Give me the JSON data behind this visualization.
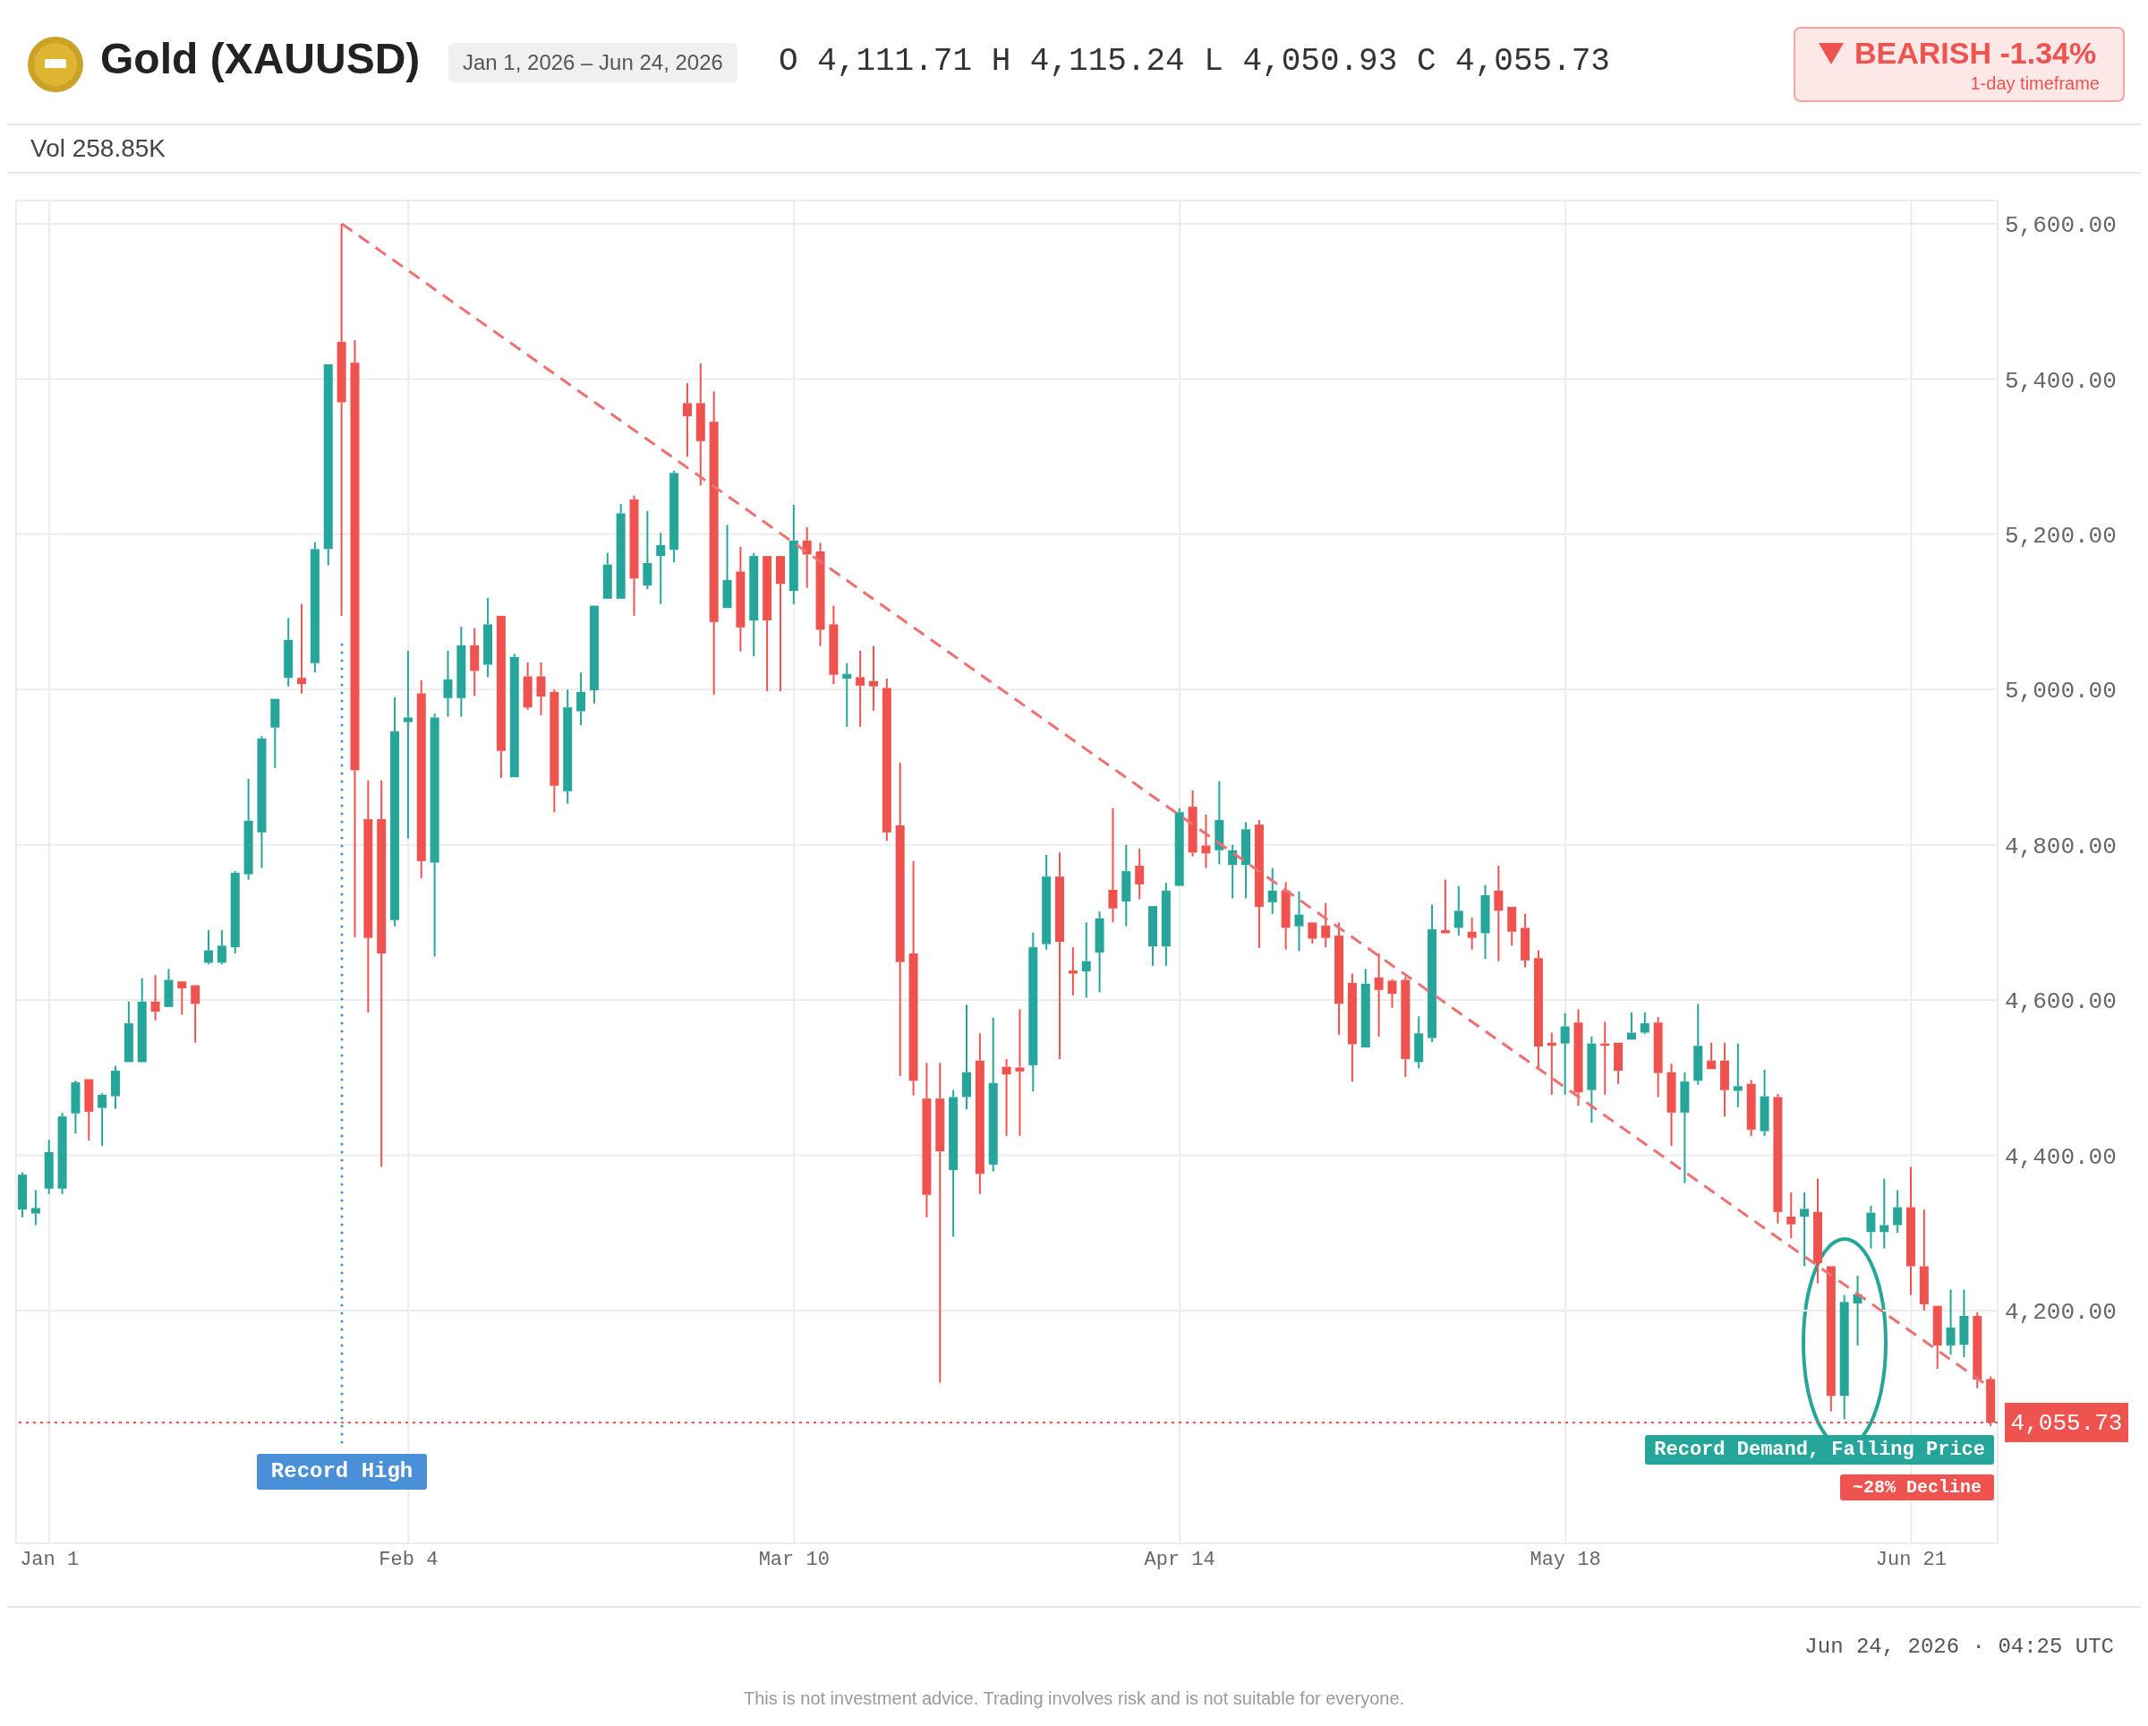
{
  "chart_data": {
    "type": "candlestick",
    "title": "Gold (XAUUSD)",
    "subtitle": "Jan 1, 2026 – Jun 24, 2026",
    "annotations": [
      "O 4,111.71 H 4,115.24 L 4,050.93 C 4,055.73",
      "BEARISH -1.34%",
      "1-day timeframe",
      "Vol 258.85K",
      "Record High",
      "Record Demand, Falling Price",
      "~28% Decline",
      "Jun 24, 2026 · 04:25 UTC",
      "This is not investment advice. Trading involves risk and is not suitable for everyone."
    ],
    "categories": [
      null,
      null,
      "Jan 1",
      null,
      null,
      null,
      null,
      null,
      null,
      null,
      null,
      null,
      null,
      null,
      null,
      null,
      null,
      null,
      null,
      null,
      null,
      null,
      null,
      null,
      null,
      null,
      null,
      null,
      null,
      "Feb 4",
      null,
      null,
      null,
      null,
      null,
      null,
      null,
      null,
      null,
      null,
      null,
      null,
      null,
      null,
      null,
      null,
      null,
      null,
      null,
      null,
      null,
      null,
      null,
      null,
      null,
      null,
      null,
      null,
      "Mar 10",
      null,
      null,
      null,
      null,
      null,
      null,
      null,
      null,
      null,
      null,
      null,
      null,
      null,
      null,
      null,
      null,
      null,
      null,
      null,
      null,
      null,
      null,
      null,
      null,
      null,
      null,
      null,
      null,
      "Apr 14",
      null,
      null,
      null,
      null,
      null,
      null,
      null,
      null,
      null,
      null,
      null,
      null,
      null,
      null,
      null,
      null,
      null,
      null,
      null,
      null,
      null,
      null,
      null,
      null,
      null,
      null,
      null,
      null,
      "May 18",
      null,
      null,
      null,
      null,
      null,
      null,
      null,
      null,
      null,
      null,
      null,
      null,
      null,
      null,
      null,
      null,
      null,
      null,
      null,
      null,
      null,
      null,
      null,
      null,
      null,
      "Jun 21",
      null,
      null,
      null,
      null,
      null,
      null
    ],
    "colors": [
      "#26a69a",
      "#26a69a",
      "#26a69a",
      "#26a69a",
      "#26a69a",
      "#ef5350",
      "#26a69a",
      "#26a69a",
      "#26a69a",
      "#26a69a",
      "#ef5350",
      "#26a69a",
      "#ef5350",
      "#ef5350",
      "#26a69a",
      "#26a69a",
      "#26a69a",
      "#26a69a",
      "#26a69a",
      "#26a69a",
      "#26a69a",
      "#ef5350",
      "#26a69a",
      "#26a69a",
      "#ef5350",
      "#ef5350",
      "#ef5350",
      "#ef5350",
      "#26a69a",
      "#26a69a",
      "#ef5350",
      "#26a69a",
      "#26a69a",
      "#26a69a",
      "#ef5350",
      "#26a69a",
      "#ef5350",
      "#26a69a",
      "#ef5350",
      "#ef5350",
      "#ef5350",
      "#26a69a",
      "#26a69a",
      "#26a69a",
      "#26a69a",
      "#26a69a",
      "#ef5350",
      "#26a69a",
      "#26a69a",
      "#26a69a",
      "#ef5350",
      "#ef5350",
      "#ef5350",
      "#26a69a",
      "#ef5350",
      "#26a69a",
      "#ef5350",
      "#ef5350",
      "#26a69a",
      "#ef5350",
      "#ef5350",
      "#ef5350",
      "#26a69a",
      "#ef5350",
      "#ef5350",
      "#ef5350",
      "#ef5350",
      "#ef5350",
      "#ef5350",
      "#ef5350",
      "#26a69a",
      "#26a69a",
      "#ef5350",
      "#26a69a",
      "#ef5350",
      "#ef5350",
      "#26a69a",
      "#26a69a",
      "#ef5350",
      "#ef5350",
      "#26a69a",
      "#26a69a",
      "#ef5350",
      "#26a69a",
      "#ef5350",
      "#26a69a",
      "#26a69a",
      "#26a69a",
      "#ef5350",
      "#ef5350",
      "#26a69a",
      "#26a69a",
      "#26a69a",
      "#ef5350",
      "#26a69a",
      "#ef5350",
      "#26a69a",
      "#ef5350",
      "#ef5350",
      "#ef5350",
      "#ef5350",
      "#26a69a",
      "#ef5350",
      "#ef5350",
      "#ef5350",
      "#26a69a",
      "#26a69a",
      "#ef5350",
      "#26a69a",
      "#ef5350",
      "#26a69a",
      "#ef5350",
      "#ef5350",
      "#ef5350",
      "#ef5350",
      "#ef5350",
      "#26a69a",
      "#ef5350",
      "#26a69a",
      "#ef5350",
      "#ef5350",
      "#26a69a",
      "#26a69a",
      "#ef5350",
      "#ef5350",
      "#26a69a",
      "#26a69a",
      "#ef5350",
      "#ef5350",
      "#26a69a",
      "#ef5350",
      "#26a69a",
      "#ef5350",
      "#ef5350",
      "#26a69a",
      "#ef5350",
      "#ef5350",
      "#26a69a",
      "#26a69a",
      "#26a69a",
      "#26a69a",
      "#26a69a",
      "#ef5350",
      "#ef5350",
      "#ef5350",
      "#26a69a",
      "#26a69a",
      "#ef5350",
      "#ef5350"
    ],
    "ohlc": [
      [
        4330,
        4378,
        4320,
        4375
      ],
      [
        4325,
        4355,
        4310,
        4332
      ],
      [
        4357,
        4420,
        4350,
        4404
      ],
      [
        4357,
        4455,
        4350,
        4450
      ],
      [
        4454,
        4496,
        4428,
        4494
      ],
      [
        4498,
        4498,
        4419,
        4456
      ],
      [
        4461,
        4480,
        4412,
        4478
      ],
      [
        4476,
        4515,
        4460,
        4509
      ],
      [
        4520,
        4598,
        4520,
        4570
      ],
      [
        4520,
        4628,
        4520,
        4598
      ],
      [
        4598,
        4632,
        4574,
        4585
      ],
      [
        4591,
        4640,
        4591,
        4626
      ],
      [
        4624,
        4624,
        4581,
        4615
      ],
      [
        4619,
        4619,
        4545,
        4595
      ],
      [
        4648,
        4690,
        4646,
        4664
      ],
      [
        4648,
        4690,
        4646,
        4670
      ],
      [
        4668,
        4766,
        4660,
        4764
      ],
      [
        4762,
        4885,
        4755,
        4831
      ],
      [
        4816,
        4940,
        4770,
        4937
      ],
      [
        4951,
        4988,
        4899,
        4988
      ],
      [
        5015,
        5092,
        5004,
        5064
      ],
      [
        5015,
        5110,
        4995,
        5007
      ],
      [
        5034,
        5190,
        5022,
        5181
      ],
      [
        5181,
        5419,
        5160,
        5419
      ],
      [
        5448,
        5600,
        5095,
        5370
      ],
      [
        5421,
        5450,
        4681,
        4896
      ],
      [
        4833,
        4883,
        4584,
        4680
      ],
      [
        4833,
        4883,
        4385,
        4660
      ],
      [
        4703,
        4990,
        4695,
        4946
      ],
      [
        4958,
        5050,
        4808,
        4964
      ],
      [
        4995,
        5012,
        4757,
        4779
      ],
      [
        4777,
        4969,
        4656,
        4964
      ],
      [
        4989,
        5050,
        4965,
        5013
      ],
      [
        4989,
        5081,
        4965,
        5057
      ],
      [
        5057,
        5079,
        4992,
        5024
      ],
      [
        5032,
        5118,
        5016,
        5084
      ],
      [
        5095,
        5095,
        4886,
        4921
      ],
      [
        4887,
        5046,
        4887,
        5042
      ],
      [
        5017,
        5035,
        4974,
        4977
      ],
      [
        5017,
        5035,
        4967,
        4991
      ],
      [
        4997,
        5000,
        4842,
        4876
      ],
      [
        4869,
        5000,
        4853,
        4977
      ],
      [
        4972,
        5022,
        4954,
        4997
      ],
      [
        4999,
        5108,
        4982,
        5108
      ],
      [
        5117,
        5176,
        5117,
        5161
      ],
      [
        5117,
        5239,
        5117,
        5227
      ],
      [
        5245,
        5250,
        5095,
        5143
      ],
      [
        5134,
        5230,
        5129,
        5163
      ],
      [
        5172,
        5202,
        5110,
        5186
      ],
      [
        5180,
        5282,
        5164,
        5279
      ],
      [
        5369,
        5395,
        5300,
        5352
      ],
      [
        5369,
        5420,
        5263,
        5320
      ],
      [
        5345,
        5384,
        4993,
        5087
      ],
      [
        5105,
        5212,
        5105,
        5141
      ],
      [
        5152,
        5184,
        5049,
        5080
      ],
      [
        5089,
        5176,
        5043,
        5172
      ],
      [
        5172,
        5172,
        4998,
        5089
      ],
      [
        5172,
        5172,
        4998,
        5136
      ],
      [
        5127,
        5238,
        5110,
        5192
      ],
      [
        5192,
        5209,
        5131,
        5174
      ],
      [
        5178,
        5189,
        5056,
        5077
      ],
      [
        5084,
        5108,
        5007,
        5019
      ],
      [
        5014,
        5034,
        4952,
        5020
      ],
      [
        5016,
        5050,
        4952,
        5005
      ],
      [
        5011,
        5056,
        4973,
        5004
      ],
      [
        5002,
        5014,
        4805,
        4816
      ],
      [
        4825,
        4906,
        4502,
        4649
      ],
      [
        4660,
        4779,
        4477,
        4496
      ],
      [
        4473,
        4519,
        4320,
        4349
      ],
      [
        4473,
        4519,
        4107,
        4405
      ],
      [
        4381,
        4484,
        4295,
        4475
      ],
      [
        4475,
        4594,
        4459,
        4507
      ],
      [
        4522,
        4557,
        4350,
        4376
      ],
      [
        4388,
        4577,
        4379,
        4493
      ],
      [
        4514,
        4524,
        4425,
        4504
      ],
      [
        4513,
        4588,
        4425,
        4508
      ],
      [
        4516,
        4687,
        4482,
        4668
      ],
      [
        4672,
        4787,
        4665,
        4759
      ],
      [
        4759,
        4790,
        4524,
        4675
      ],
      [
        4638,
        4668,
        4606,
        4634
      ],
      [
        4637,
        4700,
        4603,
        4650
      ],
      [
        4661,
        4714,
        4610,
        4705
      ],
      [
        4742,
        4847,
        4700,
        4718
      ],
      [
        4727,
        4800,
        4695,
        4766
      ],
      [
        4773,
        4795,
        4730,
        4749
      ],
      [
        4669,
        4721,
        4644,
        4721
      ],
      [
        4669,
        4751,
        4644,
        4741
      ],
      [
        4747,
        4847,
        4747,
        4842
      ],
      [
        4849,
        4870,
        4785,
        4790
      ],
      [
        4799,
        4839,
        4770,
        4789
      ],
      [
        4793,
        4882,
        4775,
        4832
      ],
      [
        4774,
        4800,
        4731,
        4793
      ],
      [
        4774,
        4829,
        4731,
        4820
      ],
      [
        4826,
        4832,
        4667,
        4720
      ],
      [
        4726,
        4770,
        4711,
        4741
      ],
      [
        4741,
        4752,
        4665,
        4693
      ],
      [
        4695,
        4740,
        4663,
        4710
      ],
      [
        4700,
        4700,
        4673,
        4679
      ],
      [
        4696,
        4725,
        4668,
        4680
      ],
      [
        4683,
        4700,
        4555,
        4595
      ],
      [
        4622,
        4634,
        4495,
        4543
      ],
      [
        4539,
        4640,
        4539,
        4621
      ],
      [
        4629,
        4660,
        4553,
        4613
      ],
      [
        4625,
        4627,
        4590,
        4608
      ],
      [
        4626,
        4630,
        4501,
        4524
      ],
      [
        4520,
        4579,
        4512,
        4557
      ],
      [
        4551,
        4723,
        4546,
        4691
      ],
      [
        4690,
        4755,
        4686,
        4686
      ],
      [
        4693,
        4747,
        4683,
        4715
      ],
      [
        4688,
        4706,
        4665,
        4680
      ],
      [
        4686,
        4748,
        4653,
        4735
      ],
      [
        4741,
        4773,
        4650,
        4715
      ],
      [
        4720,
        4720,
        4670,
        4688
      ],
      [
        4693,
        4711,
        4642,
        4651
      ],
      [
        4654,
        4664,
        4511,
        4540
      ],
      [
        4545,
        4558,
        4478,
        4541
      ],
      [
        4544,
        4583,
        4478,
        4566
      ],
      [
        4571,
        4588,
        4464,
        4481
      ],
      [
        4484,
        4553,
        4442,
        4544
      ],
      [
        4544,
        4572,
        4478,
        4541
      ],
      [
        4545,
        4545,
        4492,
        4509
      ],
      [
        4549,
        4584,
        4549,
        4558
      ],
      [
        4558,
        4584,
        4556,
        4570
      ],
      [
        4571,
        4578,
        4475,
        4506
      ],
      [
        4507,
        4518,
        4412,
        4455
      ],
      [
        4455,
        4507,
        4364,
        4495
      ],
      [
        4496,
        4595,
        4491,
        4541
      ],
      [
        4522,
        4545,
        4511,
        4511
      ],
      [
        4522,
        4545,
        4450,
        4484
      ],
      [
        4483,
        4544,
        4462,
        4489
      ],
      [
        4492,
        4497,
        4425,
        4433
      ],
      [
        4431,
        4510,
        4425,
        4476
      ],
      [
        4475,
        4479,
        4312,
        4327
      ],
      [
        4321,
        4352,
        4293,
        4311
      ],
      [
        4321,
        4352,
        4257,
        4331
      ],
      [
        4327,
        4370,
        4235,
        4261
      ],
      [
        4257,
        4257,
        4070,
        4090
      ],
      [
        4090,
        4220,
        4060,
        4211
      ],
      [
        4209,
        4245,
        4155,
        4221
      ],
      [
        4301,
        4335,
        4280,
        4326
      ],
      [
        4301,
        4370,
        4280,
        4310
      ],
      [
        4310,
        4355,
        4300,
        4333
      ],
      [
        4333,
        4385,
        4220,
        4257
      ],
      [
        4257,
        4330,
        4200,
        4208
      ],
      [
        4206,
        4206,
        4125,
        4155
      ],
      [
        4155,
        4227,
        4143,
        4178
      ],
      [
        4156,
        4227,
        4140,
        4193
      ],
      [
        4193,
        4198,
        4100,
        4111
      ],
      [
        4111.71,
        4115.24,
        4050.93,
        4055.73
      ]
    ],
    "series": [
      {
        "type": "line",
        "color": "#f07070",
        "line_style": "dashed",
        "values": [
          null,
          null,
          null,
          null,
          null,
          null,
          null,
          null,
          null,
          null,
          null,
          null,
          null,
          null,
          null,
          null,
          null,
          null,
          null,
          null,
          null,
          null,
          null,
          null,
          5600,
          null,
          null,
          null,
          null,
          null,
          null,
          null,
          null,
          null,
          null,
          null,
          null,
          null,
          null,
          null,
          null,
          null,
          null,
          null,
          null,
          null,
          null,
          null,
          null,
          null,
          null,
          null,
          null,
          null,
          null,
          null,
          null,
          null,
          null,
          null,
          null,
          null,
          null,
          null,
          null,
          null,
          null,
          null,
          null,
          null,
          null,
          null,
          null,
          null,
          null,
          null,
          null,
          null,
          null,
          null,
          null,
          null,
          null,
          null,
          null,
          null,
          null,
          null,
          null,
          null,
          null,
          null,
          null,
          null,
          null,
          null,
          null,
          null,
          null,
          null,
          null,
          null,
          null,
          null,
          null,
          null,
          null,
          null,
          null,
          null,
          null,
          null,
          null,
          null,
          null,
          null,
          null,
          null,
          null,
          null,
          null,
          null,
          null,
          null,
          null,
          null,
          null,
          null,
          null,
          null,
          null,
          null,
          null,
          null,
          null,
          null,
          null,
          null,
          null,
          null,
          null,
          null,
          null,
          null,
          null,
          null,
          null,
          null,
          4100
        ]
      }
    ],
    "ylim": [
      3900,
      5630
    ],
    "yticks": [
      {
        "value": 4200,
        "label": "4,200.00"
      },
      {
        "value": 4400,
        "label": "4,400.00"
      },
      {
        "value": 4600,
        "label": "4,600.00"
      },
      {
        "value": 4800,
        "label": "4,800.00"
      },
      {
        "value": 5000,
        "label": "5,000.00"
      },
      {
        "value": 5200,
        "label": "5,200.00"
      },
      {
        "value": 5400,
        "label": "5,400.00"
      },
      {
        "value": 5600,
        "label": "5,600.00"
      }
    ],
    "ref_lines": [
      {
        "axis": "y",
        "value": 4055.73,
        "label": "4,055.73",
        "color": "#ef5350",
        "line_style": "dotted"
      }
    ],
    "grid": true,
    "legend": false,
    "marker": "none"
  }
}
